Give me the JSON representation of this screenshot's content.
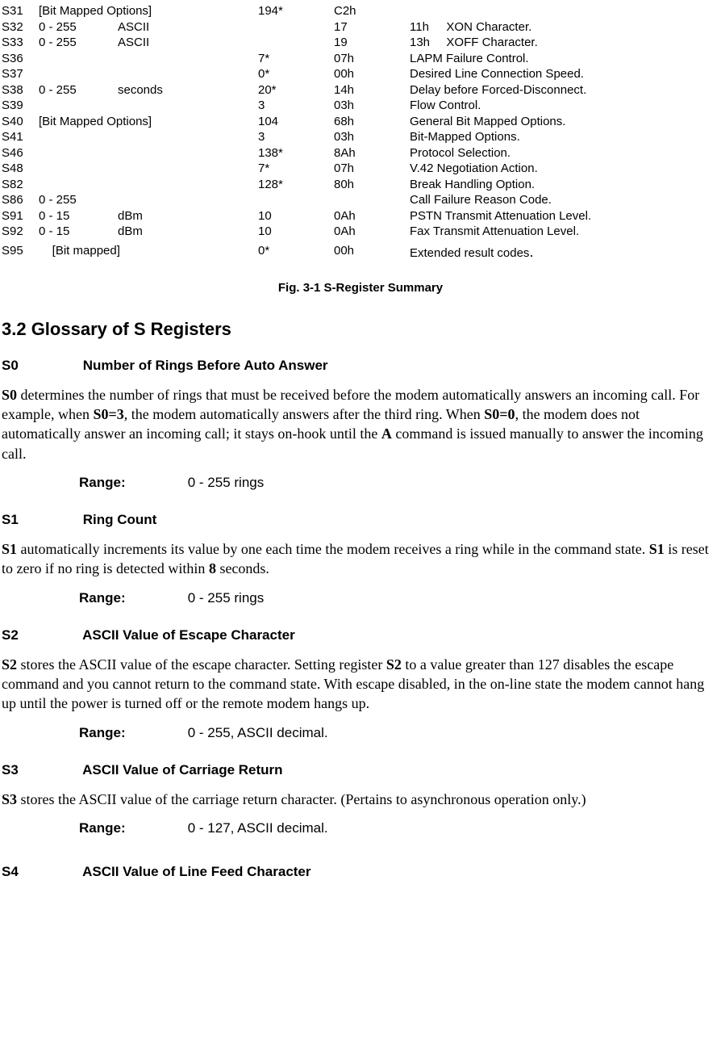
{
  "table": {
    "rows": [
      {
        "reg": "S31",
        "range": "[Bit Mapped Options]",
        "unit": "",
        "dec": "194*",
        "hex": "C2h",
        "desc": ""
      },
      {
        "reg": "S32",
        "range": "0 - 255",
        "unit": "ASCII",
        "dec": "",
        "hex": "17",
        "extra": "11h",
        "desc": "XON Character."
      },
      {
        "reg": "S33",
        "range": "0 - 255",
        "unit": "ASCII",
        "dec": "",
        "hex": "19",
        "extra": "13h",
        "desc": "XOFF Character."
      },
      {
        "reg": "S36",
        "range": "",
        "unit": "",
        "dec": "7*",
        "hex": "07h",
        "desc": "LAPM Failure Control."
      },
      {
        "reg": "S37",
        "range": "",
        "unit": "",
        "dec": "0*",
        "hex": "00h",
        "desc": "Desired Line Connection Speed."
      },
      {
        "reg": "S38",
        "range": "0 - 255",
        "unit": "seconds",
        "dec": "20*",
        "hex": "14h",
        "desc": "Delay before Forced-Disconnect."
      },
      {
        "reg": "S39",
        "range": "",
        "unit": "",
        "dec": "3",
        "hex": "03h",
        "desc": "Flow Control."
      },
      {
        "reg": "S40",
        "range": "[Bit Mapped Options]",
        "unit": "",
        "dec": "104",
        "hex": "68h",
        "desc": "General Bit Mapped Options."
      },
      {
        "reg": "S41",
        "range": "",
        "unit": "",
        "dec": "3",
        "hex": "03h",
        "desc": "Bit-Mapped Options."
      },
      {
        "reg": "S46",
        "range": "",
        "unit": "",
        "dec": "138*",
        "hex": "8Ah",
        "desc": "Protocol Selection."
      },
      {
        "reg": "S48",
        "range": "",
        "unit": "",
        "dec": "7*",
        "hex": "07h",
        "desc": "V.42 Negotiation Action."
      },
      {
        "reg": "S82",
        "range": "",
        "unit": "",
        "dec": "128*",
        "hex": "80h",
        "desc": "Break Handling Option."
      },
      {
        "reg": "S86",
        "range": "0 - 255",
        "unit": "",
        "dec": "",
        "hex": "",
        "desc": "Call Failure Reason Code."
      },
      {
        "reg": "S91",
        "range": "0 - 15",
        "unit": "dBm",
        "dec": "10",
        "hex": "0Ah",
        "desc": "PSTN Transmit Attenuation Level."
      },
      {
        "reg": "S92",
        "range": "0 - 15",
        "unit": "dBm",
        "dec": "10",
        "hex": "0Ah",
        "desc": "Fax Transmit Attenuation Level."
      }
    ],
    "last": {
      "reg": "S95",
      "range": "[Bit mapped]",
      "unit": "",
      "dec": "0*",
      "hex": "00h",
      "desc": "Extended result codes"
    }
  },
  "caption": "Fig. 3-1 S-Register Summary",
  "sectionTitle": "3.2 Glossary of S Registers",
  "s0": {
    "id": "S0",
    "title": "Number of Rings Before Auto Answer",
    "rangeLabel": "Range:",
    "rangeValue": "0 - 255 rings"
  },
  "s1": {
    "id": "S1",
    "title": "Ring Count",
    "rangeLabel": "Range:",
    "rangeValue": "0 - 255 rings"
  },
  "s2": {
    "id": "S2",
    "title": "ASCII Value of Escape Character",
    "rangeLabel": "Range:",
    "rangeValue": "0 - 255, ASCII decimal."
  },
  "s3": {
    "id": "S3",
    "title": "ASCII Value of Carriage Return",
    "rangeLabel": "Range:",
    "rangeValue": "0 - 127, ASCII decimal."
  },
  "s4": {
    "id": "S4",
    "title": "ASCII Value of Line Feed Character"
  },
  "txt": {
    "s0b1": "S0",
    "s0p1": " determines the number of rings that must be received before the modem automatically answers an incoming call. For example, when ",
    "s0b2": "S0=3",
    "s0p2": ", the modem automatically answers after the third ring. When ",
    "s0b3": "S0=0",
    "s0p3": ", the modem does not automatically answer an incoming call; it stays on-hook until the ",
    "s0b4": "A",
    "s0p4": " command is issued manually to answer the incoming call.",
    "s1b1": "S1",
    "s1p1": " automatically increments its value by one each time the modem receives a ring while in the command state. ",
    "s1b2": "S1",
    "s1p2": " is reset to zero if no ring is detected within ",
    "s1b3": "8",
    "s1p3": " seconds.",
    "s2b1": "S2",
    "s2p1": " stores the ASCII value of the escape character. Setting register ",
    "s2b2": "S2",
    "s2p2": " to a value greater than 127 disables the escape command and you cannot return to the command state. With escape disabled, in the on-line state the modem cannot hang up until the power is turned off or the remote modem hangs up.",
    "s3b1": "S3",
    "s3p1": " stores the ASCII value of the carriage return character. (Pertains to asynchronous operation only.)"
  }
}
